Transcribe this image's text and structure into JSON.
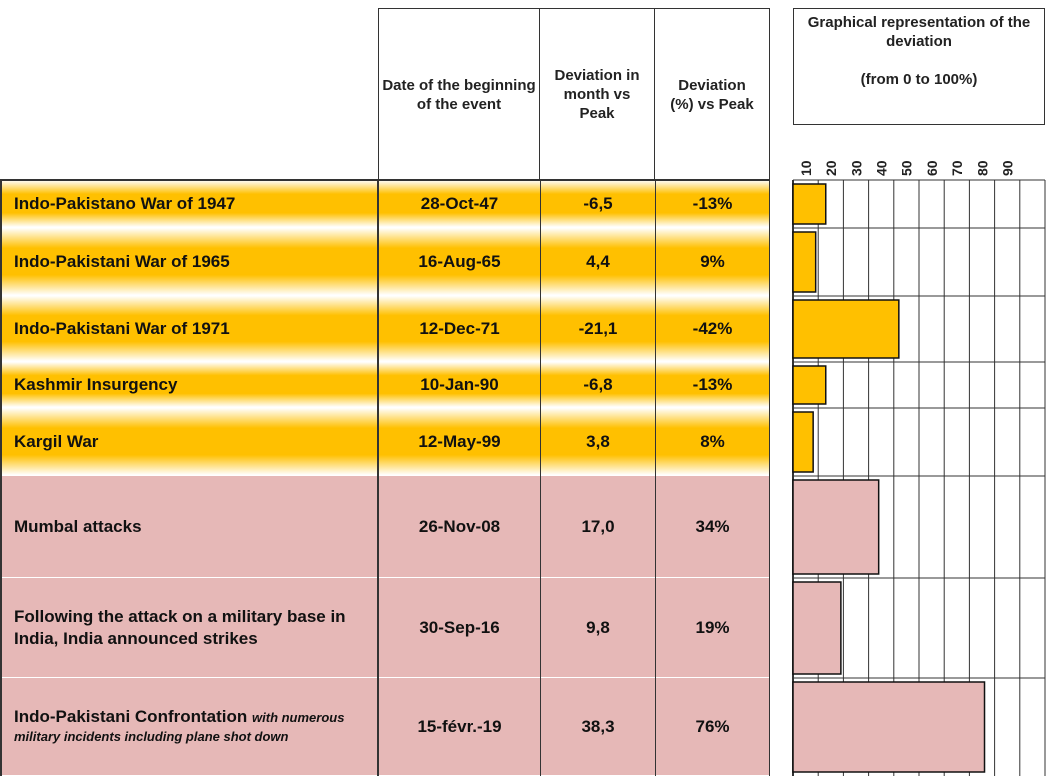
{
  "header": {
    "date": "Date of the beginning of the event",
    "months": "Deviation in month vs Peak",
    "pct": "Deviation (%) vs Peak",
    "graph_title": "Graphical representation of the deviation",
    "graph_range": "(from 0 to 100%)"
  },
  "graph": {
    "xlim": [
      0,
      100
    ],
    "xticks": [
      10,
      20,
      30,
      40,
      50,
      60,
      70,
      80,
      90
    ]
  },
  "rows": [
    {
      "label": "Indo-Pakistano War of 1947",
      "date": "28-Oct-47",
      "months": "-6,5",
      "pct": -13,
      "pct_label": "-13%",
      "color": "#ffc000",
      "style": "gradient"
    },
    {
      "label": "Indo-Pakistani War of 1965",
      "date": "16-Aug-65",
      "months": "4,4",
      "pct": 9,
      "pct_label": "9%",
      "color": "#ffc000",
      "style": "gradient"
    },
    {
      "label": "Indo-Pakistani War of 1971",
      "date": "12-Dec-71",
      "months": "-21,1",
      "pct": -42,
      "pct_label": "-42%",
      "color": "#ffc000",
      "style": "gradient"
    },
    {
      "label": "Kashmir Insurgency",
      "date": "10-Jan-90",
      "months": "-6,8",
      "pct": -13,
      "pct_label": "-13%",
      "color": "#ffc000",
      "style": "gradient"
    },
    {
      "label": "Kargil War",
      "date": "12-May-99",
      "months": "3,8",
      "pct": 8,
      "pct_label": "8%",
      "color": "#ffc000",
      "style": "gradient"
    },
    {
      "label": "Mumbal attacks",
      "date": "26-Nov-08",
      "months": "17,0",
      "pct": 34,
      "pct_label": "34%",
      "color": "#e6b8b7",
      "style": "flat"
    },
    {
      "label": "Following the attack on a military base in India, India announced strikes",
      "date": "30-Sep-16",
      "months": "9,8",
      "pct": 19,
      "pct_label": "19%",
      "color": "#e6b8b7",
      "style": "flat"
    },
    {
      "label": "Indo-Pakistani Confrontation",
      "label_note": "with numerous military incidents including plane shot down",
      "date": "15-févr.-19",
      "months": "38,3",
      "pct": 76,
      "pct_label": "76%",
      "color": "#e6b8b7",
      "style": "flat"
    }
  ]
}
